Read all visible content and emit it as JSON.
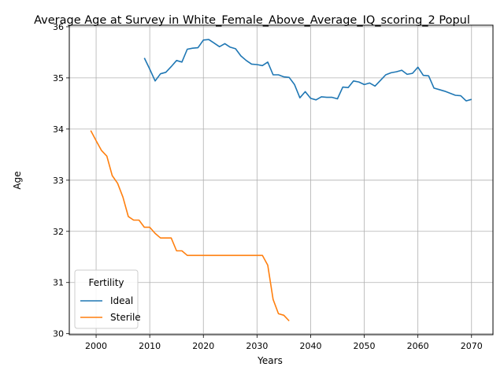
{
  "chart_data": {
    "type": "line",
    "title": "Average Age at Survey in White_Female_Above_Average_IQ_scoring_2 Popul",
    "xlabel": "Years",
    "ylabel": "Age",
    "xlim": [
      1995,
      2074
    ],
    "ylim": [
      29.98,
      36.03
    ],
    "xticks": [
      2000,
      2010,
      2020,
      2030,
      2040,
      2050,
      2060,
      2070
    ],
    "yticks": [
      30,
      31,
      32,
      33,
      34,
      35,
      36
    ],
    "grid": true,
    "legend": {
      "title": "Fertility",
      "position": "lower-left"
    },
    "series": [
      {
        "name": "Ideal",
        "color": "#1f77b4",
        "x": [
          2009,
          2010,
          2011,
          2012,
          2013,
          2014,
          2015,
          2016,
          2017,
          2018,
          2019,
          2020,
          2021,
          2022,
          2023,
          2024,
          2025,
          2026,
          2027,
          2028,
          2029,
          2030,
          2031,
          2032,
          2033,
          2034,
          2035,
          2036,
          2037,
          2038,
          2039,
          2040,
          2041,
          2042,
          2043,
          2044,
          2045,
          2046,
          2047,
          2048,
          2049,
          2050,
          2051,
          2052,
          2053,
          2054,
          2055,
          2056,
          2057,
          2058,
          2059,
          2060,
          2061,
          2062,
          2063,
          2064,
          2065,
          2066,
          2067,
          2068,
          2069,
          2070
        ],
        "y": [
          35.39,
          35.17,
          34.94,
          35.08,
          35.11,
          35.22,
          35.34,
          35.31,
          35.56,
          35.58,
          35.59,
          35.74,
          35.75,
          35.68,
          35.61,
          35.67,
          35.6,
          35.57,
          35.43,
          35.34,
          35.27,
          35.26,
          35.24,
          35.31,
          35.06,
          35.06,
          35.02,
          35.01,
          34.87,
          34.61,
          34.73,
          34.6,
          34.57,
          34.63,
          34.62,
          34.62,
          34.59,
          34.82,
          34.81,
          34.94,
          34.92,
          34.87,
          34.9,
          34.84,
          34.95,
          35.06,
          35.1,
          35.12,
          35.15,
          35.07,
          35.09,
          35.21,
          35.05,
          35.04,
          34.8,
          34.77,
          34.74,
          34.7,
          34.66,
          34.65,
          34.55,
          34.58
        ]
      },
      {
        "name": "Sterile",
        "color": "#ff7f0e",
        "x": [
          1999,
          2000,
          2001,
          2002,
          2003,
          2004,
          2005,
          2006,
          2007,
          2008,
          2009,
          2010,
          2011,
          2012,
          2013,
          2014,
          2015,
          2016,
          2017,
          2018,
          2019,
          2020,
          2021,
          2022,
          2023,
          2024,
          2025,
          2026,
          2027,
          2028,
          2029,
          2030,
          2031,
          2032,
          2033,
          2034,
          2035,
          2036
        ],
        "y": [
          33.97,
          33.77,
          33.58,
          33.47,
          33.09,
          32.94,
          32.67,
          32.29,
          32.22,
          32.22,
          32.08,
          32.08,
          31.96,
          31.87,
          31.87,
          31.87,
          31.62,
          31.62,
          31.53,
          31.53,
          31.53,
          31.53,
          31.53,
          31.53,
          31.53,
          31.53,
          31.53,
          31.53,
          31.53,
          31.53,
          31.53,
          31.53,
          31.53,
          31.34,
          30.67,
          30.39,
          30.36,
          30.25
        ]
      }
    ]
  }
}
